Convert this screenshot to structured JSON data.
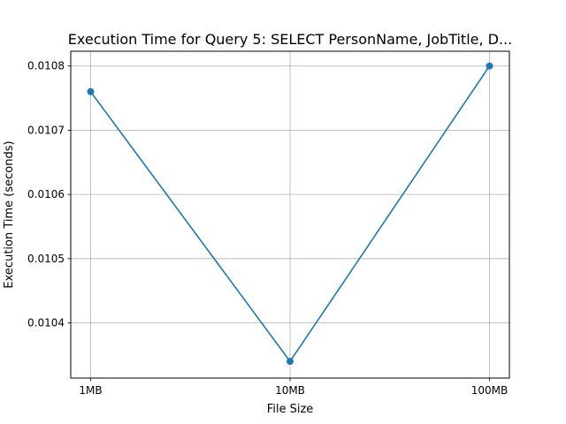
{
  "chart_data": {
    "type": "line",
    "title": "Execution Time for Query 5: SELECT PersonName, JobTitle, D...",
    "xlabel": "File Size",
    "ylabel": "Execution Time (seconds)",
    "categories": [
      "1MB",
      "10MB",
      "100MB"
    ],
    "series": [
      {
        "values": [
          0.01076,
          0.01034,
          0.0108
        ],
        "color": "#1f77b4",
        "marker": "circle"
      }
    ],
    "ylim": [
      0.010314,
      0.010823
    ],
    "yticks": [
      0.0104,
      0.0105,
      0.0106,
      0.0107,
      0.0108
    ],
    "ytick_labels": [
      "0.0104",
      "0.0105",
      "0.0106",
      "0.0107",
      "0.0108"
    ],
    "grid": true,
    "legend": false
  }
}
